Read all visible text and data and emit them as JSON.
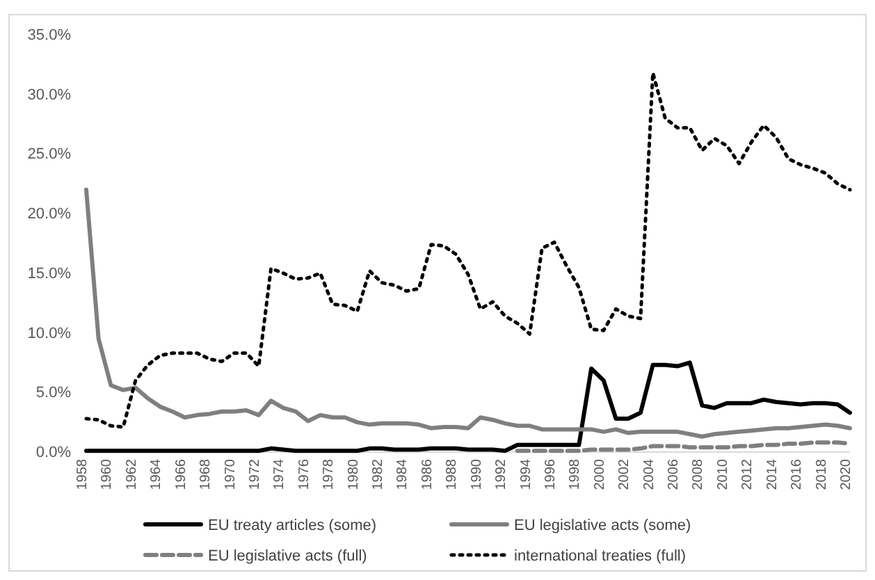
{
  "chart_data": {
    "type": "line",
    "categories": [
      "1958",
      null,
      "1960",
      null,
      "1962",
      null,
      "1964",
      null,
      "1966",
      null,
      "1968",
      null,
      "1970",
      null,
      "1972",
      null,
      "1974",
      null,
      "1976",
      null,
      "1978",
      null,
      "1980",
      null,
      "1982",
      null,
      "1984",
      null,
      "1986",
      null,
      "1988",
      null,
      "1990",
      null,
      "1992",
      null,
      "1994",
      null,
      "1996",
      null,
      "1998",
      null,
      "2000",
      null,
      "2002",
      null,
      "2004",
      null,
      "2006",
      null,
      "2008",
      null,
      "2010",
      null,
      "2012",
      null,
      "2014",
      null,
      "2016",
      null,
      "2018",
      null,
      "2020"
    ],
    "series": [
      {
        "name": "EU treaty articles (some)",
        "color": "#000000",
        "line_style": "solid",
        "values": [
          0.1,
          0.1,
          0.1,
          0.1,
          0.1,
          0.1,
          0.1,
          0.1,
          0.1,
          0.1,
          0.1,
          0.1,
          0.1,
          0.1,
          0.1,
          0.3,
          0.2,
          0.1,
          0.1,
          0.1,
          0.1,
          0.1,
          0.1,
          0.3,
          0.3,
          0.2,
          0.2,
          0.2,
          0.3,
          0.3,
          0.3,
          0.2,
          0.2,
          0.2,
          0.1,
          0.6,
          0.6,
          0.6,
          0.6,
          0.6,
          0.6,
          7.0,
          6.0,
          2.8,
          2.8,
          3.3,
          7.3,
          7.3,
          7.2,
          7.5,
          3.9,
          3.7,
          4.1,
          4.1,
          4.1,
          4.4,
          4.2,
          4.1,
          4.0,
          4.1,
          4.1,
          4.0,
          3.3
        ]
      },
      {
        "name": "EU legislative acts (some)",
        "color": "#7f7f7f",
        "line_style": "solid",
        "values": [
          22.0,
          9.5,
          5.6,
          5.2,
          5.4,
          4.5,
          3.8,
          3.4,
          2.9,
          3.1,
          3.2,
          3.4,
          3.4,
          3.5,
          3.1,
          4.3,
          3.7,
          3.4,
          2.6,
          3.1,
          2.9,
          2.9,
          2.5,
          2.3,
          2.4,
          2.4,
          2.4,
          2.3,
          2.0,
          2.1,
          2.1,
          2.0,
          2.9,
          2.7,
          2.4,
          2.2,
          2.2,
          1.9,
          1.9,
          1.9,
          1.9,
          1.9,
          1.7,
          1.9,
          1.6,
          1.7,
          1.7,
          1.7,
          1.7,
          1.5,
          1.3,
          1.5,
          1.6,
          1.7,
          1.8,
          1.9,
          2.0,
          2.0,
          2.1,
          2.2,
          2.3,
          2.2,
          2.0
        ]
      },
      {
        "name": "EU legislative acts (full)",
        "color": "#7f7f7f",
        "line_style": "dashed",
        "values": [
          null,
          null,
          null,
          null,
          null,
          null,
          null,
          null,
          null,
          null,
          null,
          null,
          null,
          null,
          null,
          null,
          null,
          null,
          null,
          null,
          null,
          null,
          null,
          null,
          null,
          null,
          null,
          null,
          null,
          null,
          null,
          null,
          null,
          null,
          null,
          0.1,
          0.1,
          0.1,
          0.1,
          0.1,
          0.1,
          0.2,
          0.2,
          0.2,
          0.2,
          0.3,
          0.5,
          0.5,
          0.5,
          0.4,
          0.4,
          0.4,
          0.4,
          0.5,
          0.5,
          0.6,
          0.6,
          0.7,
          0.7,
          0.8,
          0.8,
          0.8,
          0.7
        ]
      },
      {
        "name": "international treaties (full)",
        "color": "#000000",
        "line_style": "dotted",
        "values": [
          2.8,
          2.7,
          2.2,
          2.1,
          6.0,
          7.3,
          8.1,
          8.3,
          8.3,
          8.3,
          7.8,
          7.6,
          8.3,
          8.3,
          7.2,
          15.4,
          15.0,
          14.5,
          14.6,
          15.0,
          12.4,
          12.3,
          11.8,
          15.2,
          14.2,
          14.0,
          13.5,
          13.7,
          17.4,
          17.3,
          16.6,
          14.9,
          12.0,
          12.6,
          11.4,
          10.8,
          9.9,
          17.1,
          17.6,
          15.6,
          13.8,
          10.3,
          10.2,
          12.0,
          11.4,
          11.2,
          31.8,
          28.0,
          27.2,
          27.2,
          25.3,
          26.3,
          25.7,
          24.2,
          26.0,
          27.4,
          26.4,
          24.6,
          24.1,
          23.8,
          23.4,
          22.5,
          22.0
        ]
      }
    ],
    "ylim": [
      0,
      35
    ],
    "yticks": [
      {
        "value": 0,
        "label": "0.0%"
      },
      {
        "value": 5,
        "label": "5.0%"
      },
      {
        "value": 10,
        "label": "10.0%"
      },
      {
        "value": 15,
        "label": "15.0%"
      },
      {
        "value": 20,
        "label": "20.0%"
      },
      {
        "value": 25,
        "label": "25.0%"
      },
      {
        "value": 30,
        "label": "30.0%"
      },
      {
        "value": 35,
        "label": "35.0%"
      }
    ],
    "legend": "bottom"
  }
}
